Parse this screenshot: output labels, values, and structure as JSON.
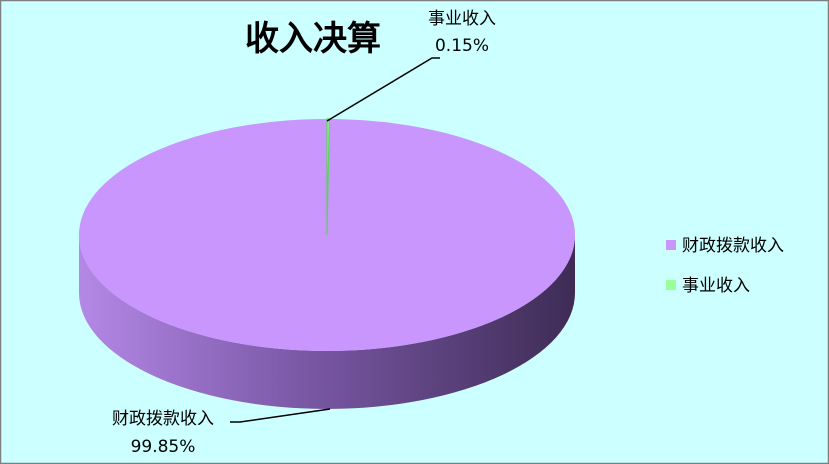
{
  "chart_data": {
    "type": "pie",
    "style": "3d",
    "title": "收入决算",
    "categories": [
      "财政拨款收入",
      "事业收入"
    ],
    "values": [
      99.85,
      0.15
    ],
    "labels": [
      "99.85%",
      "0.15%"
    ],
    "colors": [
      "#c896fc",
      "#99ff99"
    ],
    "background": "#ccffff",
    "legend": {
      "position": "right",
      "entries": [
        "财政拨款收入",
        "事业收入"
      ]
    }
  }
}
